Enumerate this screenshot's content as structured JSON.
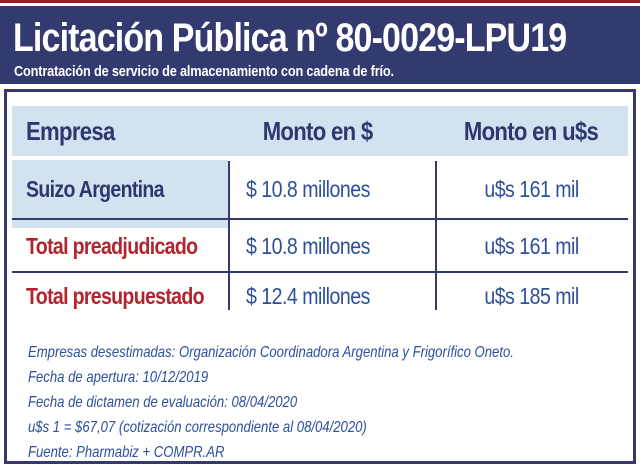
{
  "chart_data": {
    "type": "table",
    "title": "Licitación Pública nº 80-0029-LPU19",
    "subtitle": "Contratación de servicio de almacenamiento con cadena de frío.",
    "columns": [
      "Empresa",
      "Monto en $",
      "Monto en u$s"
    ],
    "rows": [
      {
        "empresa": "Suizo Argentina",
        "monto_pesos": "$ 10.8 millones",
        "monto_usd": "u$s 161 mil"
      },
      {
        "empresa": "Total preadjudicado",
        "monto_pesos": "$ 10.8 millones",
        "monto_usd": "u$s 161 mil"
      },
      {
        "empresa": "Total presupuestado",
        "monto_pesos": "$ 12.4 millones",
        "monto_usd": "u$s 185 mil"
      }
    ],
    "notes": [
      "Empresas desestimadas: Organización Coordinadora Argentina y Frigorífico Oneto.",
      "Fecha de apertura: 10/12/2019",
      "Fecha de dictamen de evaluación: 08/04/2020",
      "u$s 1 = $67,07 (cotización correspondiente al 08/04/2020)",
      "Fuente: Pharmabiz + COMPR.AR"
    ],
    "layout_hints": {
      "highlighted_cells": [
        "header row",
        "Suizo Argentina cell"
      ],
      "total_rows_color": "red labels",
      "grid": "horizontal rules between total rows, vertical dividers between columns"
    }
  },
  "colors": {
    "top_bar_red": "#9e1c23",
    "navy": "#333a70",
    "navy_text": "#2e386e",
    "light_blue": "#d3e2f1",
    "value_blue": "#2d4f9c",
    "total_red": "#b2252e"
  }
}
